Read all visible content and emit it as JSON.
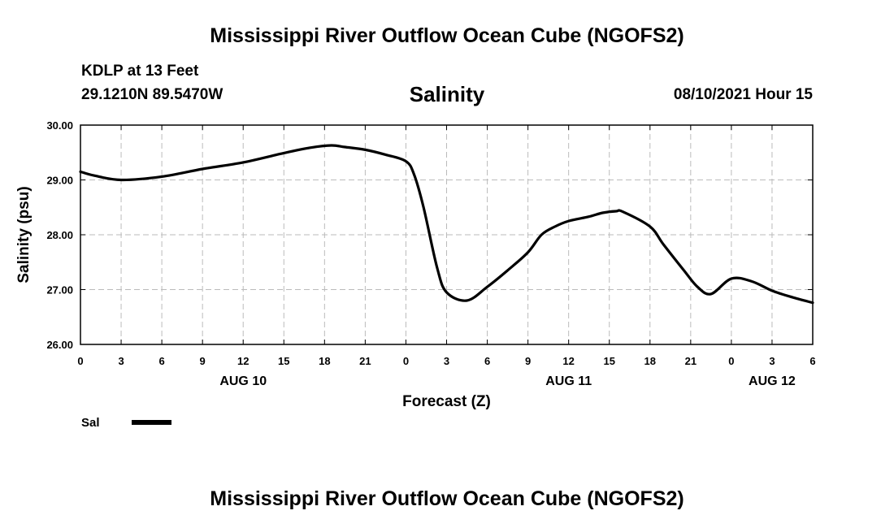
{
  "header": {
    "title": "Mississippi River Outflow Ocean Cube (NGOFS2)",
    "station": "KDLP at 13 Feet",
    "coords": "29.1210N  89.5470W",
    "chart_title": "Salinity",
    "datetime": "08/10/2021 Hour 15"
  },
  "footer": {
    "title": "Mississippi River Outflow Ocean Cube (NGOFS2)"
  },
  "legend": {
    "label": "Sal"
  },
  "colors": {
    "line": "#000000",
    "grid": "#bbbbbb"
  },
  "chart_data": {
    "type": "line",
    "title": "Salinity",
    "xlabel": "Forecast (Z)",
    "ylabel": "Salinity (psu)",
    "ylim": [
      26.0,
      30.0
    ],
    "xlim": [
      0,
      54
    ],
    "yticks": [
      "26.00",
      "27.00",
      "28.00",
      "29.00",
      "30.00"
    ],
    "xticks": [
      {
        "x": 0,
        "label": "0"
      },
      {
        "x": 3,
        "label": "3"
      },
      {
        "x": 6,
        "label": "6"
      },
      {
        "x": 9,
        "label": "9"
      },
      {
        "x": 12,
        "label": "12"
      },
      {
        "x": 15,
        "label": "15"
      },
      {
        "x": 18,
        "label": "18"
      },
      {
        "x": 21,
        "label": "21"
      },
      {
        "x": 24,
        "label": "0"
      },
      {
        "x": 27,
        "label": "3"
      },
      {
        "x": 30,
        "label": "6"
      },
      {
        "x": 33,
        "label": "9"
      },
      {
        "x": 36,
        "label": "12"
      },
      {
        "x": 39,
        "label": "15"
      },
      {
        "x": 42,
        "label": "18"
      },
      {
        "x": 45,
        "label": "21"
      },
      {
        "x": 48,
        "label": "0"
      },
      {
        "x": 51,
        "label": "3"
      },
      {
        "x": 54,
        "label": "6"
      }
    ],
    "dates": [
      {
        "x": 12,
        "label": "AUG 10"
      },
      {
        "x": 36,
        "label": "AUG 11"
      },
      {
        "x": 51,
        "label": "AUG 12"
      }
    ],
    "grid": true,
    "series": [
      {
        "name": "Sal",
        "x": [
          0,
          1,
          3,
          6,
          9,
          12,
          15,
          17,
          18.5,
          19.5,
          21,
          22.5,
          24,
          24.6,
          25.3,
          26.3,
          27,
          28.5,
          30,
          31.5,
          33,
          34,
          35,
          36,
          37.5,
          38.5,
          39.5,
          40,
          42,
          43,
          44.5,
          45.5,
          46.5,
          48,
          49.5,
          51,
          52.5,
          54
        ],
        "values": [
          29.15,
          29.08,
          29.0,
          29.06,
          29.2,
          29.32,
          29.49,
          29.59,
          29.63,
          29.6,
          29.55,
          29.46,
          29.34,
          29.1,
          28.5,
          27.4,
          26.95,
          26.8,
          27.05,
          27.35,
          27.68,
          28.0,
          28.15,
          28.25,
          28.33,
          28.4,
          28.43,
          28.42,
          28.15,
          27.82,
          27.35,
          27.05,
          26.92,
          27.2,
          27.15,
          26.98,
          26.86,
          26.76
        ]
      }
    ]
  }
}
